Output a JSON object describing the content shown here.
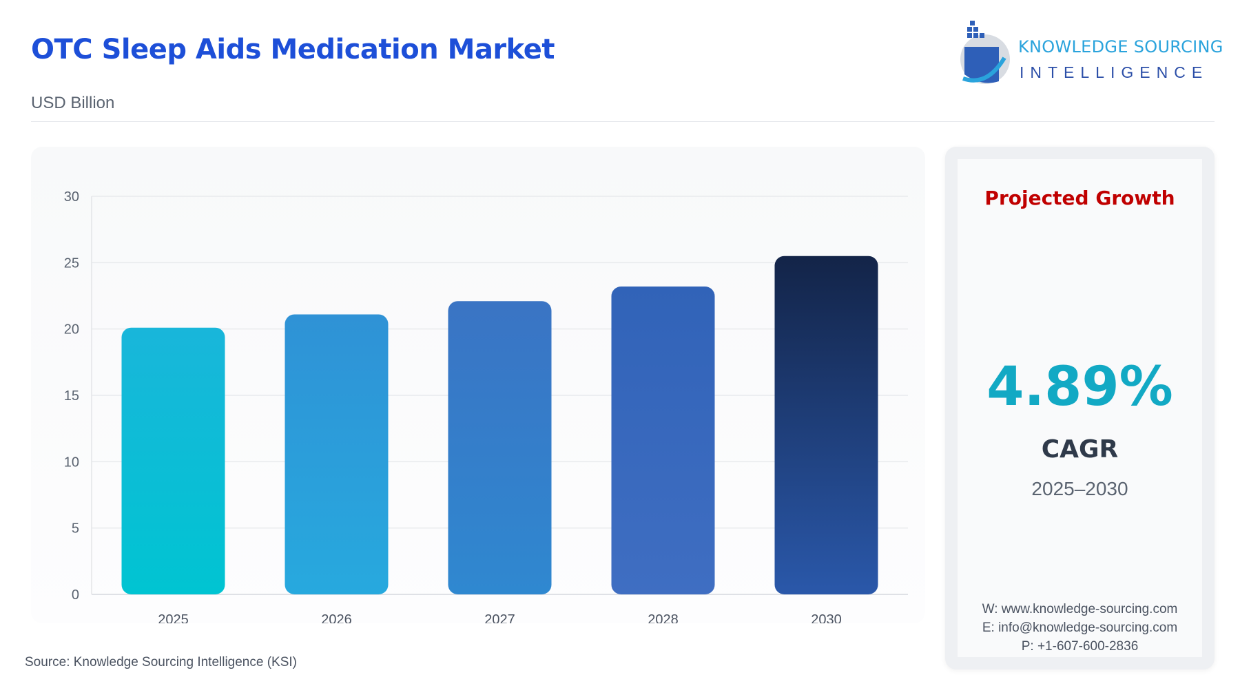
{
  "header": {
    "title": "OTC Sleep Aids Medication Market",
    "subtitle": "USD Billion"
  },
  "logo": {
    "line1": "KNOWLEDGE SOURCING",
    "line2": "INTELLIGENCE"
  },
  "chart_data": {
    "type": "bar",
    "categories": [
      "2025",
      "2026",
      "2027",
      "2028",
      "2030"
    ],
    "values": [
      20.1,
      21.1,
      22.1,
      23.2,
      25.5
    ],
    "ylim": [
      0,
      30
    ],
    "yticks": [
      0,
      5,
      10,
      15,
      20,
      25,
      30
    ],
    "grid": true,
    "xlabel": "",
    "ylabel": "",
    "colors": [
      [
        "#19b6da",
        "#00c4d2"
      ],
      [
        "#2f92d6",
        "#27a9de"
      ],
      [
        "#3a74c4",
        "#2f88d0"
      ],
      [
        "#3163b8",
        "#3f6ec2"
      ],
      [
        "#132448",
        "#2a58aa"
      ]
    ]
  },
  "side": {
    "heading": "Projected Growth",
    "value": "4.89%",
    "label": "CAGR",
    "period": "2025–2030",
    "web": "W: www.knowledge-sourcing.com",
    "email": "E: info@knowledge-sourcing.com",
    "phone": "P: +1-607-600-2836"
  },
  "footer": {
    "source": "Source: Knowledge Sourcing Intelligence (KSI)"
  }
}
